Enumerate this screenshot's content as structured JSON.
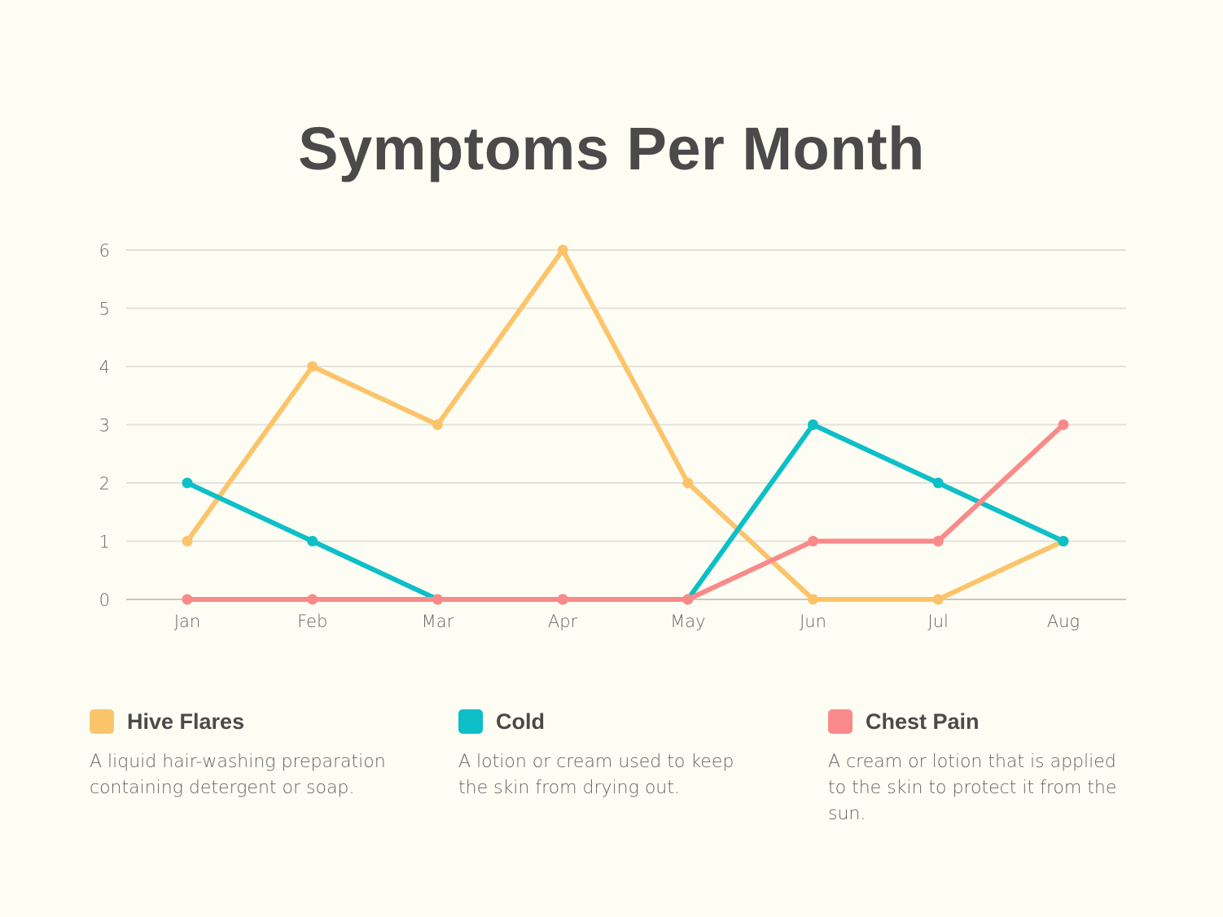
{
  "chart_data": {
    "type": "line",
    "title": "Symptoms Per Month",
    "categories": [
      "Jan",
      "Feb",
      "Mar",
      "Apr",
      "May",
      "Jun",
      "Jul",
      "Aug"
    ],
    "ylim": [
      0,
      6
    ],
    "yticks": [
      0,
      1,
      2,
      3,
      4,
      5,
      6
    ],
    "grid": true,
    "legend_position": "bottom",
    "series": [
      {
        "name": "Hive Flares",
        "color": "#fcc46a",
        "values": [
          1,
          4,
          3,
          6,
          2,
          0,
          0,
          1
        ]
      },
      {
        "name": "Cold",
        "color": "#0dbfc7",
        "values": [
          2,
          1,
          0,
          0,
          0,
          3,
          2,
          1
        ]
      },
      {
        "name": "Chest Pain",
        "color": "#fa8a8a",
        "values": [
          0,
          0,
          0,
          0,
          0,
          1,
          1,
          3
        ]
      }
    ]
  },
  "legend": [
    {
      "name": "Hive Flares",
      "color": "#fcc46a",
      "description": "A liquid hair-washing preparation containing detergent or soap."
    },
    {
      "name": "Cold",
      "color": "#0dbfc7",
      "description": "A lotion or cream used to keep the skin from drying out."
    },
    {
      "name": "Chest Pain",
      "color": "#fa8a8a",
      "description": "A cream or lotion that is applied to the skin to protect it from the sun."
    }
  ]
}
